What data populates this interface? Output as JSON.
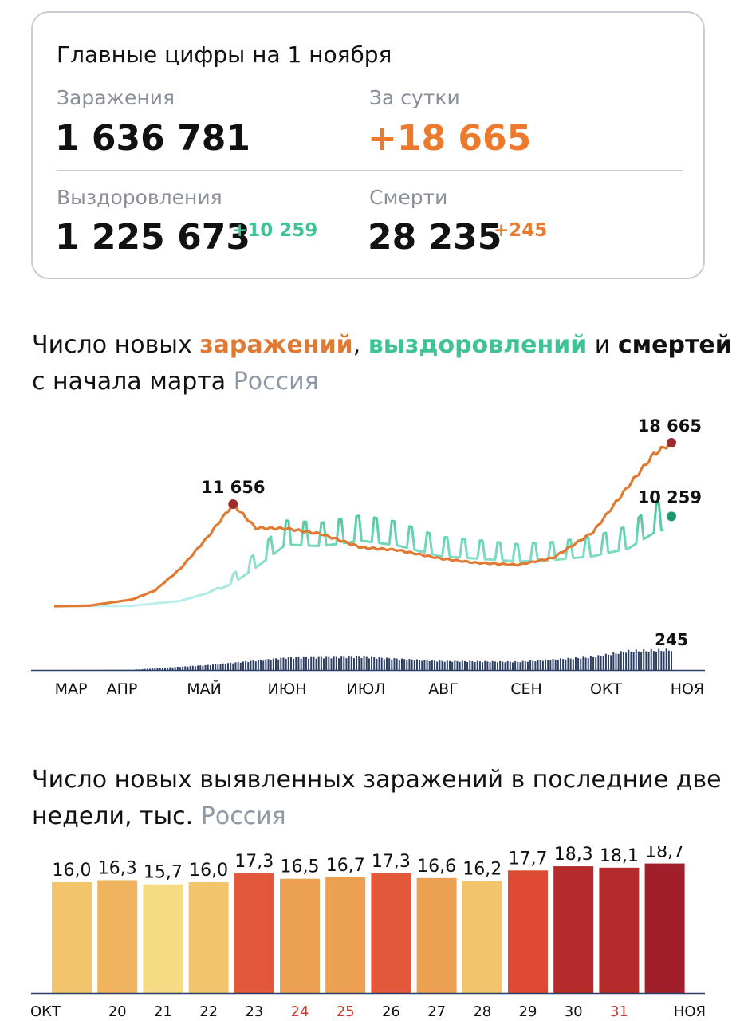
{
  "summary": {
    "title": "Главные цифры на 1 ноября",
    "infections_label": "Заражения",
    "infections_value": "1 636 781",
    "daily_label": "За сутки",
    "daily_value": "+18 665",
    "recovered_label": "Выздоровления",
    "recovered_value": "1 225 673",
    "recovered_delta": "+10 259",
    "deaths_label": "Смерти",
    "deaths_value": "28 235",
    "deaths_delta": "+245"
  },
  "chart1_heading": {
    "part1": "Число новых ",
    "infections_word": "заражений",
    "comma": ", ",
    "recoveries_word": "выздоровлений",
    "and": " и ",
    "deaths_word": "смертей",
    "line2": "с начала марта ",
    "region": "Россия"
  },
  "chart2_heading": {
    "line1": "Число новых выявленных заражений в последние две",
    "line2": "недели, тыс. ",
    "region": "Россия"
  },
  "colors": {
    "infections": "#e07a32",
    "recoveries": "#3cc497",
    "deaths": "#2c3e63",
    "accent_orange": "#ec7a2c",
    "accent_green": "#3cc497",
    "weekend_red": "#d23a2a"
  },
  "chart_data": [
    {
      "type": "line",
      "x_ticks": [
        "МАР",
        "АПР",
        "МАЙ",
        "ИЮН",
        "ИЮЛ",
        "АВГ",
        "СЕН",
        "ОКТ",
        "НОЯ"
      ],
      "series": [
        {
          "key": "infections",
          "x": [
            "Mar 1",
            "Mar 15",
            "Apr 1",
            "Apr 10",
            "Apr 20",
            "May 1",
            "May 11",
            "May 20",
            "Jun 1",
            "Jun 15",
            "Jul 1",
            "Jul 15",
            "Aug 1",
            "Aug 15",
            "Sep 1",
            "Sep 15",
            "Oct 1",
            "Oct 15",
            "Oct 25",
            "Nov 1"
          ],
          "values": [
            0,
            60,
            770,
            1786,
            4268,
            7933,
            11656,
            8926,
            8863,
            8246,
            6693,
            6422,
            5462,
            4969,
            4729,
            5509,
            8481,
            13754,
            17347,
            18665
          ]
        },
        {
          "key": "recoveries",
          "x": [
            "Mar 1",
            "Apr 1",
            "Apr 20",
            "May 1",
            "May 11",
            "May 20",
            "Jun 1",
            "Jun 15",
            "Jul 1",
            "Jul 15",
            "Aug 1",
            "Aug 15",
            "Sep 1",
            "Sep 15",
            "Oct 1",
            "Oct 15",
            "Oct 25",
            "Nov 1"
          ],
          "values": [
            0,
            40,
            600,
            1500,
            3000,
            5000,
            8000,
            7800,
            8500,
            7900,
            6500,
            6200,
            5800,
            6000,
            6500,
            7500,
            9500,
            10259
          ]
        },
        {
          "key": "deaths",
          "x": [
            "Mar 1",
            "Apr 1",
            "May 1",
            "Jun 1",
            "Jul 1",
            "Aug 1",
            "Sep 1",
            "Oct 1",
            "Oct 15",
            "Nov 1"
          ],
          "values": [
            0,
            3,
            60,
            150,
            160,
            110,
            100,
            160,
            230,
            245
          ]
        }
      ],
      "annotations": [
        "11 656",
        "18 665",
        "10 259",
        "245"
      ]
    },
    {
      "type": "bar",
      "categories": [
        "ОКТ",
        "20",
        "21",
        "22",
        "23",
        "24",
        "25",
        "26",
        "27",
        "28",
        "29",
        "30",
        "31",
        "НОЯ"
      ],
      "values": [
        16.0,
        16.3,
        15.7,
        16.0,
        17.3,
        16.5,
        16.7,
        17.3,
        16.6,
        16.2,
        17.7,
        18.3,
        18.1,
        18.7
      ],
      "value_labels": [
        "16,0",
        "16,3",
        "15,7",
        "16,0",
        "17,3",
        "16,5",
        "16,7",
        "17,3",
        "16,6",
        "16,2",
        "17,7",
        "18,3",
        "18,1",
        "18,7"
      ],
      "bar_colors": [
        "#f2c46b",
        "#f0b35e",
        "#f5db84",
        "#f2c46b",
        "#e3573a",
        "#eca052",
        "#eca052",
        "#e3573a",
        "#eca052",
        "#f2c46b",
        "#df4a35",
        "#b52a2a",
        "#b52a2a",
        "#a11f2b"
      ],
      "weekend_categories": [
        "24",
        "25",
        "31"
      ],
      "ylim": [
        0,
        19
      ]
    }
  ]
}
